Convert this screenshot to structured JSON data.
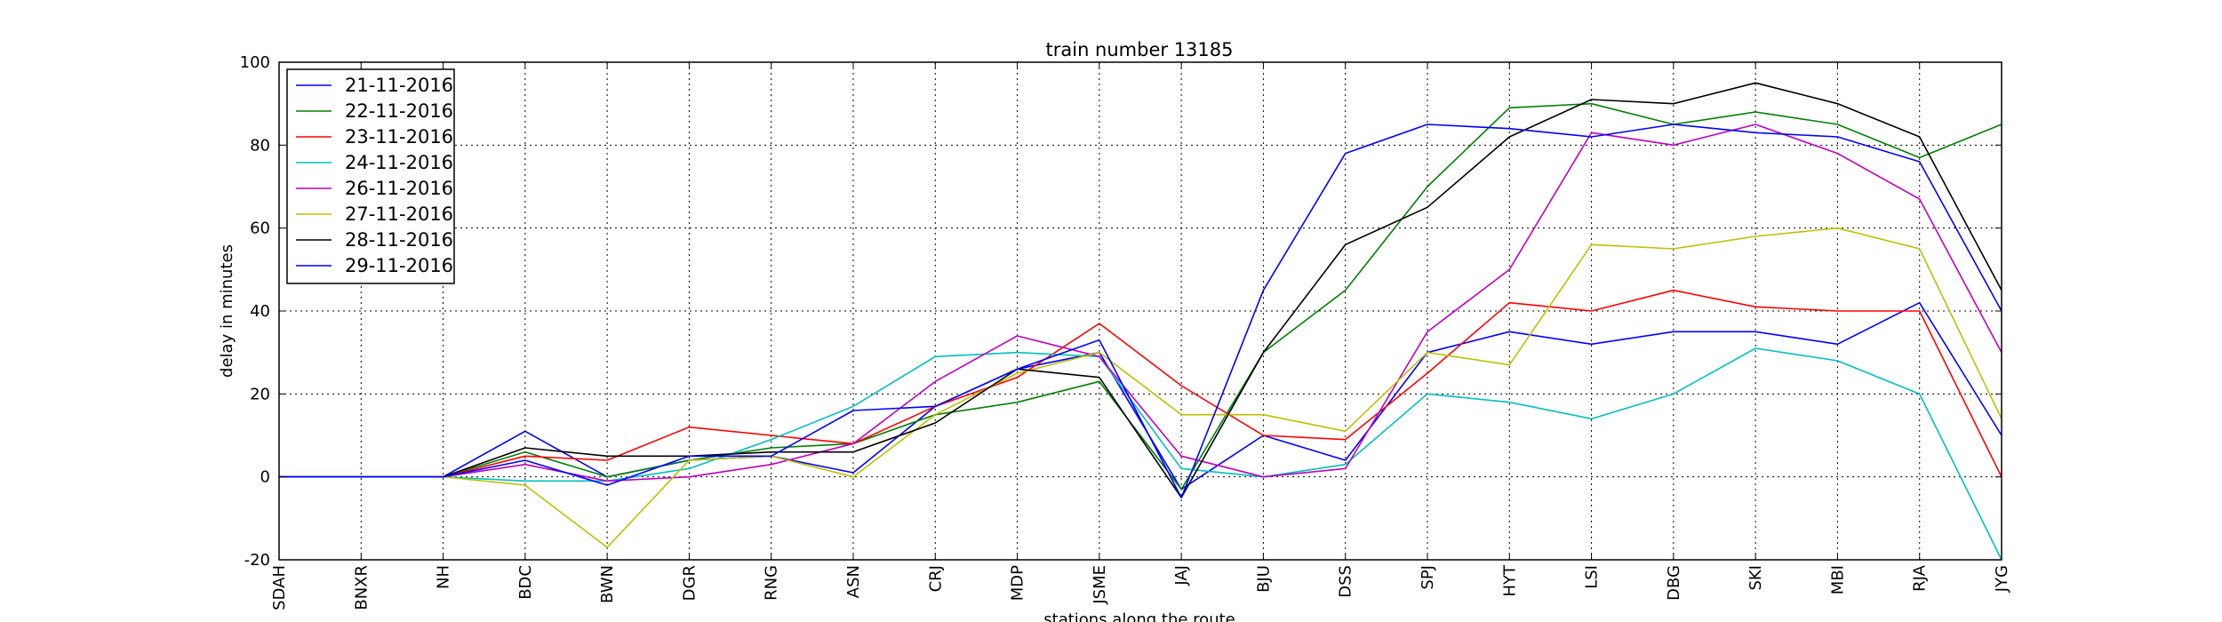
{
  "chart_data": {
    "type": "line",
    "title": "train number 13185",
    "xlabel": "stations along the route",
    "ylabel": "delay in minutes",
    "categories": [
      "SDAH",
      "BNXR",
      "NH",
      "BDC",
      "BWN",
      "DGR",
      "RNG",
      "ASN",
      "CRJ",
      "MDP",
      "JSME",
      "JAJ",
      "BJU",
      "DSS",
      "SPJ",
      "HYT",
      "LSI",
      "DBG",
      "SKI",
      "MBI",
      "RJA",
      "JYG"
    ],
    "ylim": [
      -20,
      100
    ],
    "yticks": [
      -20,
      0,
      20,
      40,
      60,
      80,
      100
    ],
    "grid": true,
    "legend_position": "top-left",
    "series": [
      {
        "name": "21-11-2016",
        "color": "#0000ff",
        "values": [
          0,
          0,
          0,
          11,
          0,
          4,
          5,
          1,
          17,
          26,
          30,
          -3,
          10,
          4,
          30,
          35,
          32,
          35,
          35,
          32,
          42,
          10
        ]
      },
      {
        "name": "22-11-2016",
        "color": "#008000",
        "values": [
          0,
          0,
          0,
          6,
          0,
          4,
          7,
          8,
          15,
          18,
          23,
          -3,
          30,
          45,
          70,
          89,
          90,
          85,
          88,
          85,
          77,
          85
        ]
      },
      {
        "name": "23-11-2016",
        "color": "#ff0000",
        "values": [
          0,
          0,
          0,
          5,
          4,
          12,
          10,
          8,
          17,
          24,
          37,
          22,
          10,
          9,
          25,
          42,
          40,
          45,
          41,
          40,
          40,
          0
        ]
      },
      {
        "name": "24-11-2016",
        "color": "#00bfbf",
        "values": [
          0,
          0,
          0,
          -1,
          -1,
          2,
          9,
          17,
          29,
          30,
          29,
          2,
          0,
          3,
          20,
          18,
          14,
          20,
          31,
          28,
          20,
          -20
        ]
      },
      {
        "name": "26-11-2016",
        "color": "#bf00bf",
        "values": [
          0,
          0,
          0,
          3,
          -1,
          0,
          3,
          8,
          23,
          34,
          29,
          5,
          0,
          2,
          35,
          50,
          83,
          80,
          85,
          78,
          67,
          30
        ]
      },
      {
        "name": "27-11-2016",
        "color": "#bfbf00",
        "values": [
          0,
          0,
          0,
          -2,
          -17,
          4,
          5,
          0,
          15,
          25,
          30,
          15,
          15,
          11,
          30,
          27,
          56,
          55,
          58,
          60,
          55,
          14
        ]
      },
      {
        "name": "28-11-2016",
        "color": "#000000",
        "values": [
          0,
          0,
          0,
          7,
          5,
          5,
          6,
          6,
          13,
          26,
          24,
          -5,
          30,
          56,
          65,
          82,
          91,
          90,
          95,
          90,
          82,
          45
        ]
      },
      {
        "name": "29-11-2016",
        "color": "#0000ff",
        "values": [
          0,
          0,
          0,
          4,
          -2,
          5,
          5,
          16,
          17,
          26,
          33,
          -5,
          45,
          78,
          85,
          84,
          82,
          85,
          83,
          82,
          76,
          40
        ]
      }
    ]
  }
}
